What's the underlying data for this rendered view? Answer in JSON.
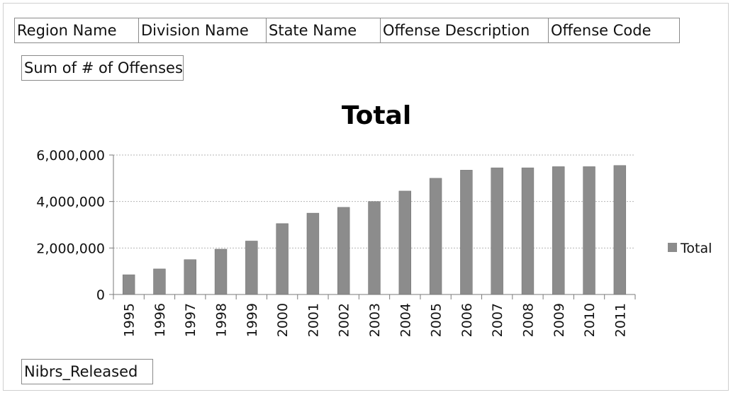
{
  "pivot_fields": {
    "filters": [
      "Region Name",
      "Division Name",
      "State Name",
      "Offense Description",
      "Offense Code"
    ],
    "values": "Sum of # of Offenses",
    "axis": "Nibrs_Released"
  },
  "colors": {
    "bar": "#8c8c8c",
    "axis": "#7a7a7a",
    "grid": "#b5b5b5"
  },
  "chart_data": {
    "type": "bar",
    "title": "Total",
    "xlabel": "",
    "ylabel": "",
    "categories": [
      "1995",
      "1996",
      "1997",
      "1998",
      "1999",
      "2000",
      "2001",
      "2002",
      "2003",
      "2004",
      "2005",
      "2006",
      "2007",
      "2008",
      "2009",
      "2010",
      "2011"
    ],
    "series": [
      {
        "name": "Total",
        "values": [
          850000,
          1100000,
          1500000,
          1950000,
          2300000,
          3050000,
          3500000,
          3750000,
          4000000,
          4450000,
          5000000,
          5350000,
          5450000,
          5450000,
          5500000,
          5500000,
          5550000
        ]
      }
    ],
    "ylim": [
      0,
      6000000
    ],
    "yticks": [
      0,
      2000000,
      4000000,
      6000000
    ],
    "ytick_labels": [
      "0",
      "2,000,000",
      "4,000,000",
      "6,000,000"
    ],
    "grid": true,
    "legend": "right"
  }
}
